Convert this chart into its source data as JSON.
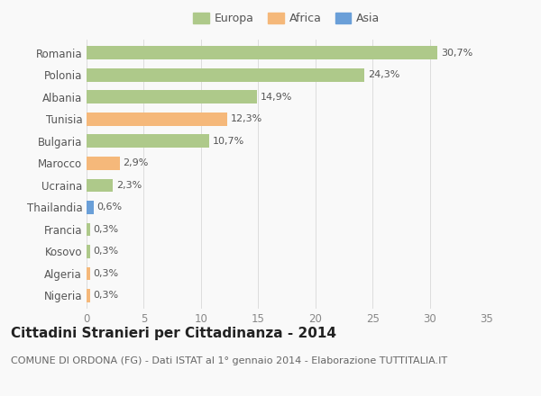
{
  "categories": [
    "Romania",
    "Polonia",
    "Albania",
    "Tunisia",
    "Bulgaria",
    "Marocco",
    "Ucraina",
    "Thailandia",
    "Francia",
    "Kosovo",
    "Algeria",
    "Nigeria"
  ],
  "values": [
    30.7,
    24.3,
    14.9,
    12.3,
    10.7,
    2.9,
    2.3,
    0.6,
    0.3,
    0.3,
    0.3,
    0.3
  ],
  "labels": [
    "30,7%",
    "24,3%",
    "14,9%",
    "12,3%",
    "10,7%",
    "2,9%",
    "2,3%",
    "0,6%",
    "0,3%",
    "0,3%",
    "0,3%",
    "0,3%"
  ],
  "continent": [
    "Europa",
    "Europa",
    "Europa",
    "Africa",
    "Europa",
    "Africa",
    "Europa",
    "Asia",
    "Europa",
    "Europa",
    "Africa",
    "Africa"
  ],
  "colors": {
    "Europa": "#aec98a",
    "Africa": "#f5b87a",
    "Asia": "#6a9fd8"
  },
  "legend_items": [
    "Europa",
    "Africa",
    "Asia"
  ],
  "legend_colors": [
    "#aec98a",
    "#f5b87a",
    "#6a9fd8"
  ],
  "title": "Cittadini Stranieri per Cittadinanza - 2014",
  "subtitle": "COMUNE DI ORDONA (FG) - Dati ISTAT al 1° gennaio 2014 - Elaborazione TUTTITALIA.IT",
  "xlim": [
    0,
    35
  ],
  "xticks": [
    0,
    5,
    10,
    15,
    20,
    25,
    30,
    35
  ],
  "background_color": "#f9f9f9",
  "grid_color": "#dddddd",
  "bar_height": 0.6,
  "title_fontsize": 11,
  "subtitle_fontsize": 8,
  "label_fontsize": 8,
  "tick_fontsize": 8.5,
  "legend_fontsize": 9
}
